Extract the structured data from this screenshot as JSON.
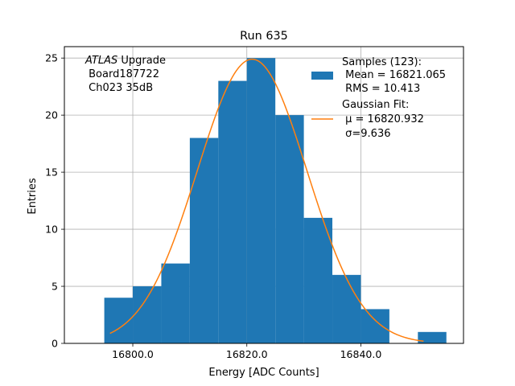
{
  "chart_data": {
    "type": "bar",
    "title": "Run 635",
    "xlabel": "Energy [ADC Counts]",
    "ylabel": "Entries",
    "xlim": [
      16788,
      16858
    ],
    "ylim": [
      0,
      26
    ],
    "grid": true,
    "xticks": [
      16800,
      16820,
      16840
    ],
    "xtick_labels": [
      "16800.0",
      "16820.0",
      "16840.0"
    ],
    "yticks": [
      0,
      5,
      10,
      15,
      20,
      25
    ],
    "ytick_labels": [
      "0",
      "5",
      "10",
      "15",
      "20",
      "25"
    ],
    "colors": {
      "histogram": "#1f77b4",
      "fit": "#ff7f0e",
      "grid": "#b0b0b0"
    },
    "histogram": {
      "bin_edges": [
        16795,
        16800,
        16805,
        16810,
        16815,
        16820,
        16825,
        16830,
        16835,
        16840,
        16845,
        16850,
        16855
      ],
      "counts": [
        4,
        5,
        7,
        18,
        23,
        25,
        20,
        11,
        6,
        3,
        0,
        1
      ]
    },
    "fit": {
      "amplitude": 24.9,
      "mu": 16820.932,
      "sigma": 9.636,
      "x_range": [
        16796,
        16851
      ]
    },
    "annotation": {
      "italic": "ATLAS",
      "rest": " Upgrade",
      "line2": " Board187722",
      "line3": " Ch023 35dB"
    },
    "legend": {
      "placement": "top-right",
      "entries": [
        {
          "kind": "patch",
          "lines": [
            "Samples (123):",
            " Mean = 16821.065",
            " RMS = 10.413"
          ]
        },
        {
          "kind": "line",
          "lines": [
            "Gaussian Fit:",
            " μ = 16820.932",
            " σ=9.636"
          ]
        }
      ]
    }
  }
}
